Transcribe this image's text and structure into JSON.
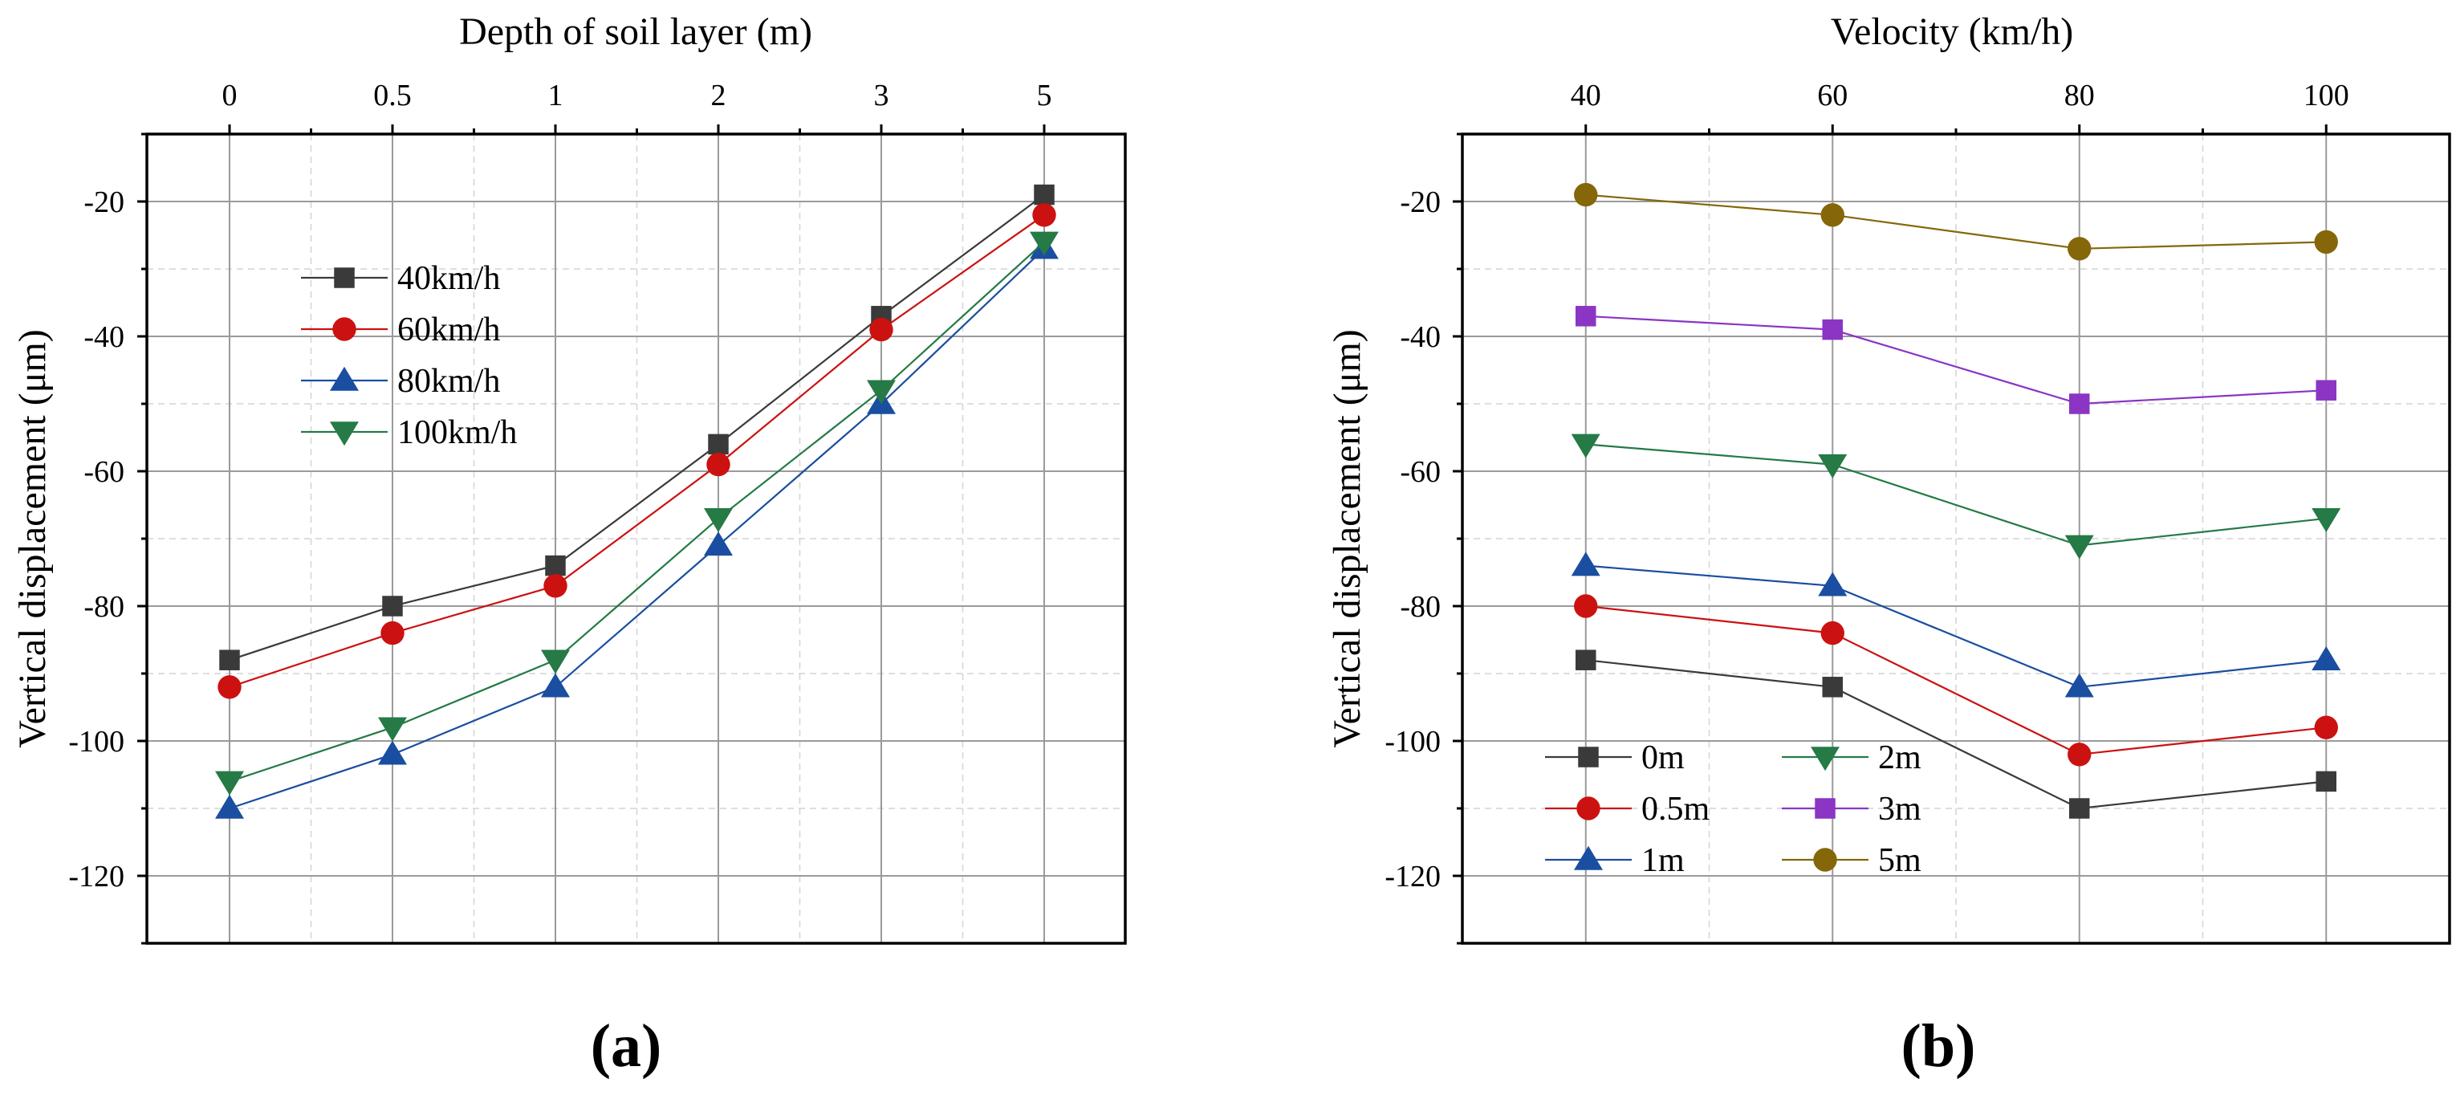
{
  "chart_data": [
    {
      "type": "line",
      "panel_label": "(a)",
      "xlabel": "Depth of soil layer (m)",
      "ylabel": "Vertical displacement (μm)",
      "categories": [
        "0",
        "0.5",
        "1",
        "2",
        "3",
        "5"
      ],
      "yticks": [
        -20,
        -40,
        -60,
        -80,
        -100,
        -120
      ],
      "ylim": [
        -130,
        -10
      ],
      "grid": true,
      "legend_position": "upper-left",
      "series": [
        {
          "name": "40km/h",
          "color": "#3a3a3a",
          "marker": "square",
          "values": [
            -88,
            -80,
            -74,
            -56,
            -37,
            -19
          ]
        },
        {
          "name": "60km/h",
          "color": "#cc1111",
          "marker": "circle",
          "values": [
            -92,
            -84,
            -77,
            -59,
            -39,
            -22
          ]
        },
        {
          "name": "80km/h",
          "color": "#1a4ea0",
          "marker": "triangle-up",
          "values": [
            -110,
            -102,
            -92,
            -71,
            -50,
            -27
          ]
        },
        {
          "name": "100km/h",
          "color": "#257a46",
          "marker": "triangle-down",
          "values": [
            -106,
            -98,
            -88,
            -67,
            -48,
            -26
          ]
        }
      ]
    },
    {
      "type": "line",
      "panel_label": "(b)",
      "xlabel": "Velocity (km/h)",
      "ylabel": "Vertical displacement (μm)",
      "x": [
        40,
        60,
        80,
        100
      ],
      "xtick_labels": [
        "40",
        "60",
        "80",
        "100"
      ],
      "xlim": [
        30,
        110
      ],
      "yticks": [
        -20,
        -40,
        -60,
        -80,
        -100,
        -120
      ],
      "ylim": [
        -130,
        -10
      ],
      "grid": true,
      "legend_position": "lower-left",
      "series": [
        {
          "name": "0m",
          "color": "#3a3a3a",
          "marker": "square",
          "values": [
            -88,
            -92,
            -110,
            -106
          ]
        },
        {
          "name": "0.5m",
          "color": "#cc1111",
          "marker": "circle",
          "values": [
            -80,
            -84,
            -102,
            -98
          ]
        },
        {
          "name": "1m",
          "color": "#1a4ea0",
          "marker": "triangle-up",
          "values": [
            -74,
            -77,
            -92,
            -88
          ]
        },
        {
          "name": "2m",
          "color": "#257a46",
          "marker": "triangle-down",
          "values": [
            -56,
            -59,
            -71,
            -67
          ]
        },
        {
          "name": "3m",
          "color": "#8a35c4",
          "marker": "square",
          "values": [
            -37,
            -39,
            -50,
            -48
          ]
        },
        {
          "name": "5m",
          "color": "#85670a",
          "marker": "circle",
          "values": [
            -19,
            -22,
            -27,
            -26
          ]
        }
      ]
    }
  ]
}
